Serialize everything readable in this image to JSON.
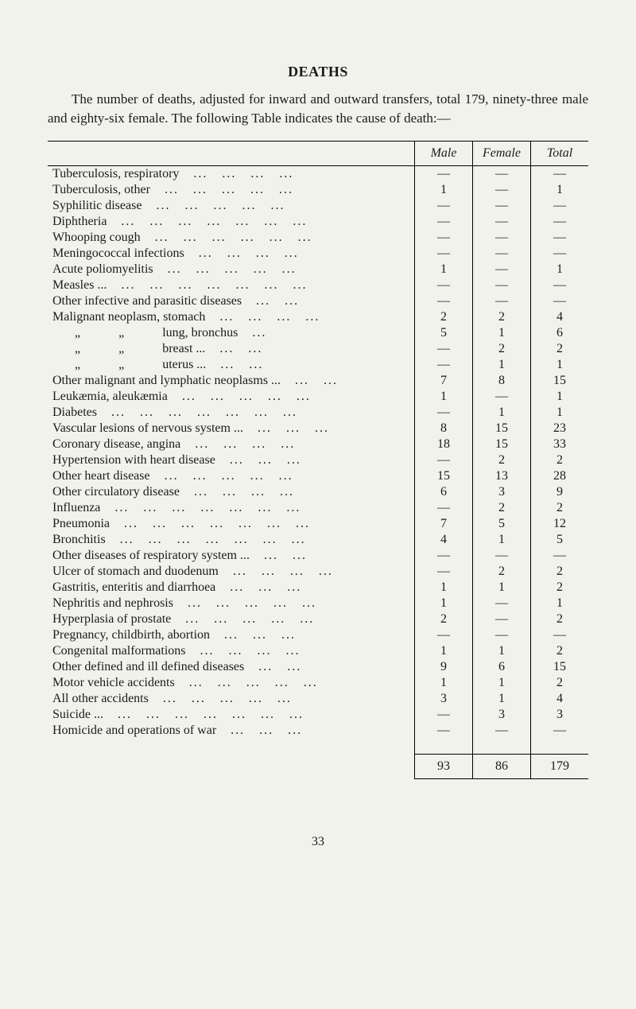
{
  "title": "DEATHS",
  "intro": "The number of deaths, adjusted for inward and outward transfers, total 179, ninety-three male and eighty-six female. The following Table indicates the cause of death:—",
  "columns": [
    "",
    "Male",
    "Female",
    "Total"
  ],
  "rows": [
    {
      "label": "Tuberculosis, respiratory",
      "male": "—",
      "female": "—",
      "total": "—"
    },
    {
      "label": "Tuberculosis, other",
      "male": "1",
      "female": "—",
      "total": "1"
    },
    {
      "label": "Syphilitic disease",
      "male": "—",
      "female": "—",
      "total": "—"
    },
    {
      "label": "Diphtheria",
      "male": "—",
      "female": "—",
      "total": "—"
    },
    {
      "label": "Whooping cough",
      "male": "—",
      "female": "—",
      "total": "—"
    },
    {
      "label": "Meningococcal infections",
      "male": "—",
      "female": "—",
      "total": "—"
    },
    {
      "label": "Acute poliomyelitis",
      "male": "1",
      "female": "—",
      "total": "1"
    },
    {
      "label": "Measles ...",
      "male": "—",
      "female": "—",
      "total": "—"
    },
    {
      "label": "Other infective and parasitic diseases",
      "male": "—",
      "female": "—",
      "total": "—"
    },
    {
      "label": "Malignant neoplasm, stomach",
      "male": "2",
      "female": "2",
      "total": "4"
    },
    {
      "label": "       „            „            lung, bronchus",
      "male": "5",
      "female": "1",
      "total": "6",
      "indent": true
    },
    {
      "label": "       „            „            breast ...",
      "male": "—",
      "female": "2",
      "total": "2",
      "indent": true
    },
    {
      "label": "       „            „            uterus ...",
      "male": "—",
      "female": "1",
      "total": "1",
      "indent": true
    },
    {
      "label": "Other malignant and lymphatic neoplasms ...",
      "male": "7",
      "female": "8",
      "total": "15"
    },
    {
      "label": "Leukæmia, aleukæmia",
      "male": "1",
      "female": "—",
      "total": "1"
    },
    {
      "label": "Diabetes",
      "male": "—",
      "female": "1",
      "total": "1"
    },
    {
      "label": "Vascular lesions of nervous system ...",
      "male": "8",
      "female": "15",
      "total": "23"
    },
    {
      "label": "Coronary disease, angina",
      "male": "18",
      "female": "15",
      "total": "33"
    },
    {
      "label": "Hypertension with heart disease",
      "male": "—",
      "female": "2",
      "total": "2"
    },
    {
      "label": "Other heart disease",
      "male": "15",
      "female": "13",
      "total": "28"
    },
    {
      "label": "Other circulatory disease",
      "male": "6",
      "female": "3",
      "total": "9"
    },
    {
      "label": "Influenza",
      "male": "—",
      "female": "2",
      "total": "2"
    },
    {
      "label": "Pneumonia",
      "male": "7",
      "female": "5",
      "total": "12"
    },
    {
      "label": "Bronchitis",
      "male": "4",
      "female": "1",
      "total": "5"
    },
    {
      "label": "Other diseases of respiratory system ...",
      "male": "—",
      "female": "—",
      "total": "—"
    },
    {
      "label": "Ulcer of stomach and duodenum",
      "male": "—",
      "female": "2",
      "total": "2"
    },
    {
      "label": "Gastritis, enteritis and diarrhoea",
      "male": "1",
      "female": "1",
      "total": "2"
    },
    {
      "label": "Nephritis and nephrosis",
      "male": "1",
      "female": "—",
      "total": "1"
    },
    {
      "label": "Hyperplasia of prostate",
      "male": "2",
      "female": "—",
      "total": "2"
    },
    {
      "label": "Pregnancy, childbirth, abortion",
      "male": "—",
      "female": "—",
      "total": "—"
    },
    {
      "label": "Congenital malformations",
      "male": "1",
      "female": "1",
      "total": "2"
    },
    {
      "label": "Other defined and ill defined diseases",
      "male": "9",
      "female": "6",
      "total": "15"
    },
    {
      "label": "Motor vehicle accidents",
      "male": "1",
      "female": "1",
      "total": "2"
    },
    {
      "label": "All other accidents",
      "male": "3",
      "female": "1",
      "total": "4"
    },
    {
      "label": "Suicide ...",
      "male": "—",
      "female": "3",
      "total": "3"
    },
    {
      "label": "Homicide and operations of war",
      "male": "—",
      "female": "—",
      "total": "—"
    }
  ],
  "totals": {
    "male": "93",
    "female": "86",
    "total": "179"
  },
  "page_number": "33",
  "colors": {
    "background": "#f2f2ed",
    "text": "#1a1a1a",
    "rule": "#000000"
  },
  "typography": {
    "body_font": "Times New Roman",
    "title_size_pt": 18,
    "body_size_pt": 17,
    "table_size_pt": 16
  }
}
